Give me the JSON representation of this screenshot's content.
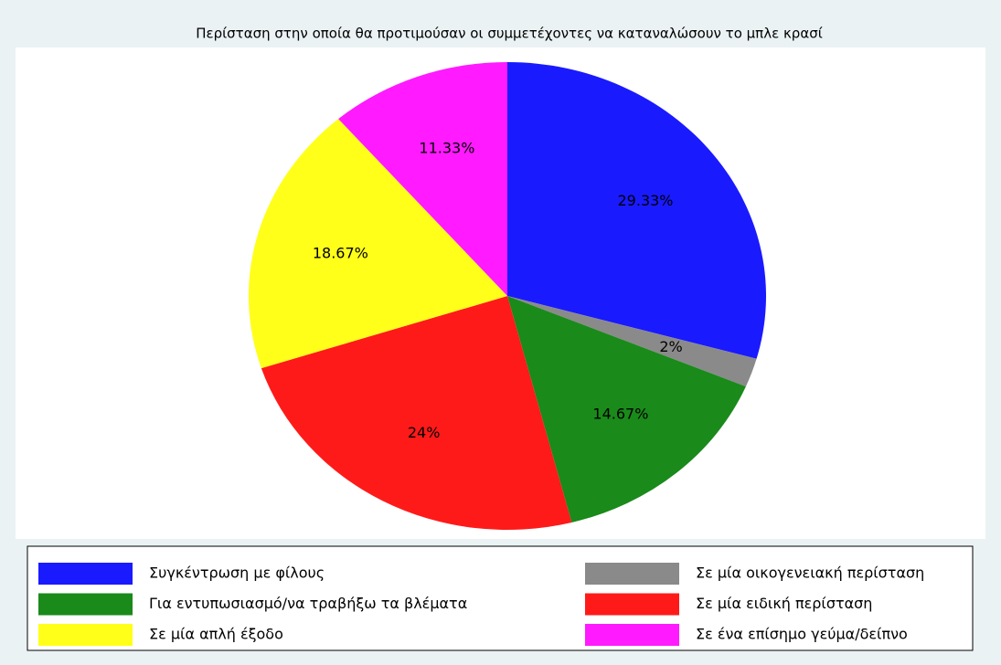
{
  "chart_data": {
    "type": "pie",
    "title": "Περίσταση στην οποία θα προτιμούσαν οι συμμετέχοντες να καταναλώσουν το μπλε κρασί",
    "categories": [
      "Συγκέντρωση με φίλους",
      "Σε μία οικογενειακή περίσταση",
      "Για εντυπωσιασμό/να τραβήξω τα βλέματα",
      "Σε μία ειδική περίσταση",
      "Σε μία απλή έξοδο",
      "Σε ένα επίσημο γεύμα/δείπνο"
    ],
    "values": [
      29.33,
      2,
      14.67,
      24,
      18.67,
      11.33
    ],
    "value_labels": [
      "29.33%",
      "2%",
      "14.67%",
      "24%",
      "18.67%",
      "11.33%"
    ],
    "colors": [
      "#1a1aff",
      "#8a8a8a",
      "#1a8a1a",
      "#ff1a1a",
      "#ffff1a",
      "#ff1aff"
    ],
    "legend": "bottom"
  }
}
